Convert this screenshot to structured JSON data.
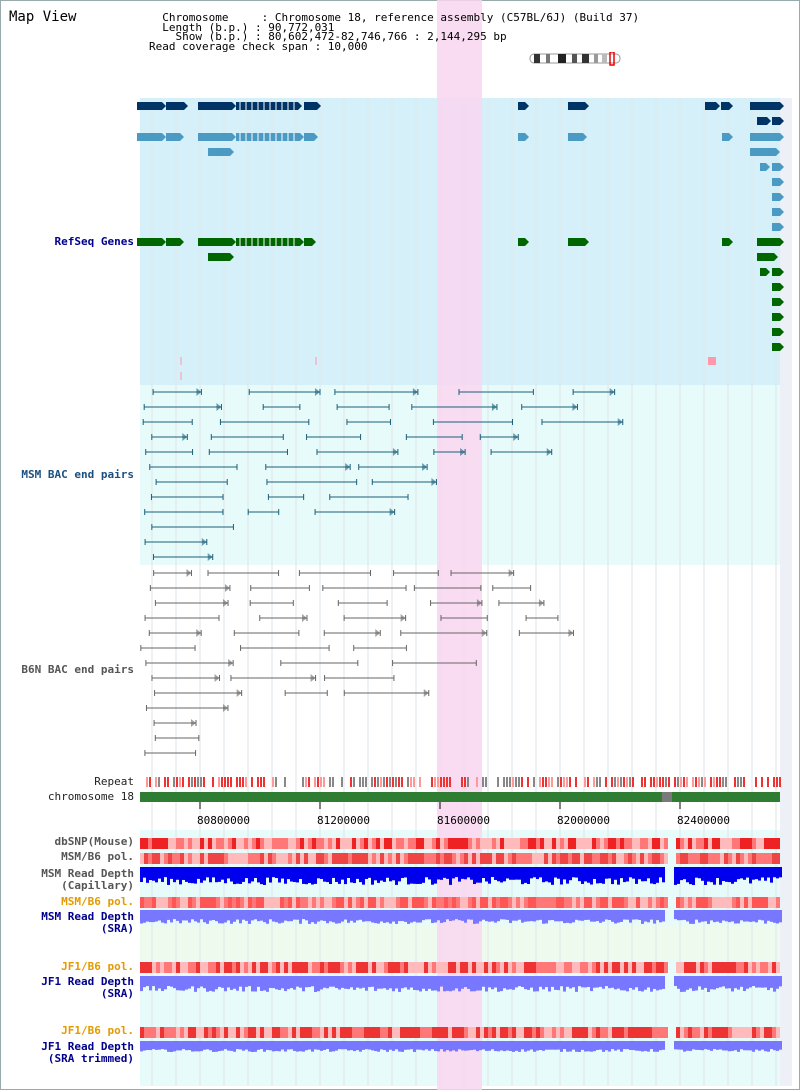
{
  "header": {
    "title": "Map View",
    "info_lines": [
      "  Chromosome     : Chromosome 18, reference assembly (C57BL/6J) (Build 37)",
      "  Length (b.p.) : 90,772,031",
      "    Show (b.p.) : 80,602,472-82,746,766 : 2,144,295 bp",
      "Read coverage check span : 10,000"
    ]
  },
  "tracks": {
    "refseq": "RefSeq Genes",
    "msm_bac": "MSM BAC end pairs",
    "b6n_bac": "B6N BAC end pairs",
    "repeat": "Repeat",
    "chromosome": "chromosome 18",
    "dbsnp": "dbSNP(Mouse)",
    "msm_b6_pol_cap": "MSM/B6 pol.",
    "msm_depth_cap_1": "MSM Read Depth",
    "msm_depth_cap_2": "(Capillary)",
    "msm_b6_pol_sra": "MSM/B6 pol.",
    "msm_depth_sra_1": "MSM Read Depth",
    "msm_depth_sra_2": "(SRA)",
    "jf1_b6_pol_1": "JF1/B6 pol.",
    "jf1_depth_1": "JF1 Read Depth",
    "jf1_depth_1b": "(SRA)",
    "jf1_b6_pol_2": "JF1/B6 pol.",
    "jf1_depth_2": "JF1 Read Depth",
    "jf1_depth_2b": "(SRA trimmed)"
  },
  "axis": {
    "ticks": [
      "80800000",
      "81200000",
      "81600000",
      "82000000",
      "82400000"
    ]
  },
  "colors": {
    "refseq_bg": "#d6f0fa",
    "highlight": "#f9d6f0",
    "lower_bg": "#e8fbfb",
    "gene_dark": "#003366",
    "gene_mid": "#4a9ac4",
    "gene_green": "#006600",
    "bac_teal": "#1a5f7a",
    "bac_gray": "#666666",
    "depth_blue": "#0000ee",
    "depth_light": "#7777ff"
  }
}
